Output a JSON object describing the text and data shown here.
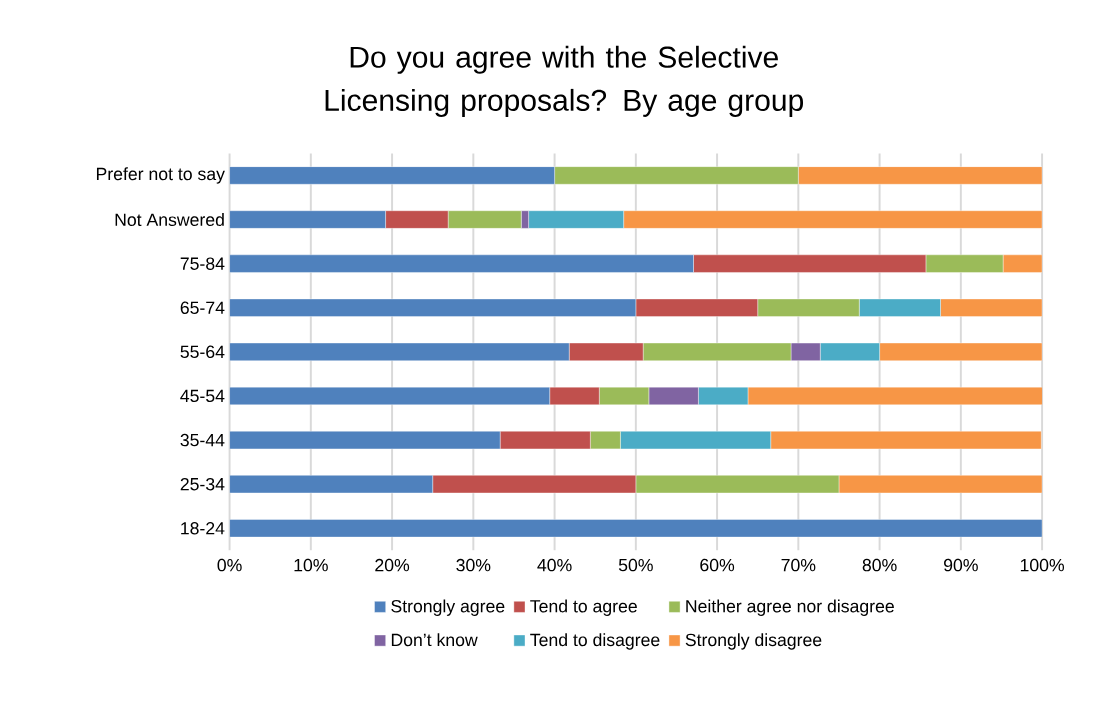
{
  "chart_data": {
    "type": "bar",
    "orientation": "horizontal",
    "stacked": true,
    "title": "Do you agree with the Selective Licensing proposals? By age group",
    "categories": [
      "Prefer not to say",
      "Not Answered",
      "75-84",
      "65-74",
      "55-64",
      "45-54",
      "35-44",
      "25-34",
      "18-24"
    ],
    "series": [
      {
        "name": "Strongly agree",
        "color": "#4f81bd",
        "values": [
          40,
          19.2,
          57.1,
          50,
          41.8,
          39.4,
          33.3,
          25,
          100
        ]
      },
      {
        "name": "Tend to agree",
        "color": "#c0504d",
        "values": [
          0,
          7.7,
          28.6,
          15,
          9.1,
          6.1,
          11.1,
          25,
          0
        ]
      },
      {
        "name": "Neither agree nor disagree",
        "color": "#9bbb59",
        "values": [
          30,
          9.0,
          9.5,
          12.5,
          18.2,
          6.1,
          3.7,
          25,
          0
        ]
      },
      {
        "name": "Don’t know",
        "color": "#8064a2",
        "values": [
          0,
          0.9,
          0,
          0,
          3.6,
          6.1,
          0,
          0,
          0
        ]
      },
      {
        "name": "Tend to disagree",
        "color": "#4bacc6",
        "values": [
          0,
          11.7,
          0,
          10,
          7.3,
          6.1,
          18.5,
          0,
          0
        ]
      },
      {
        "name": "Strongly disagree",
        "color": "#f79646",
        "values": [
          30,
          51.5,
          4.8,
          12.5,
          20.0,
          36.4,
          33.3,
          25,
          0
        ]
      }
    ],
    "xlim": [
      0,
      100
    ],
    "xticks": [
      {
        "value": 0,
        "label": "0%"
      },
      {
        "value": 10,
        "label": "10%"
      },
      {
        "value": 20,
        "label": "20%"
      },
      {
        "value": 30,
        "label": "30%"
      },
      {
        "value": 40,
        "label": "40%"
      },
      {
        "value": 50,
        "label": "50%"
      },
      {
        "value": 60,
        "label": "60%"
      },
      {
        "value": 70,
        "label": "70%"
      },
      {
        "value": 80,
        "label": "80%"
      },
      {
        "value": 90,
        "label": "90%"
      },
      {
        "value": 100,
        "label": "100%"
      }
    ],
    "grid": "x",
    "legend": "bottom"
  }
}
